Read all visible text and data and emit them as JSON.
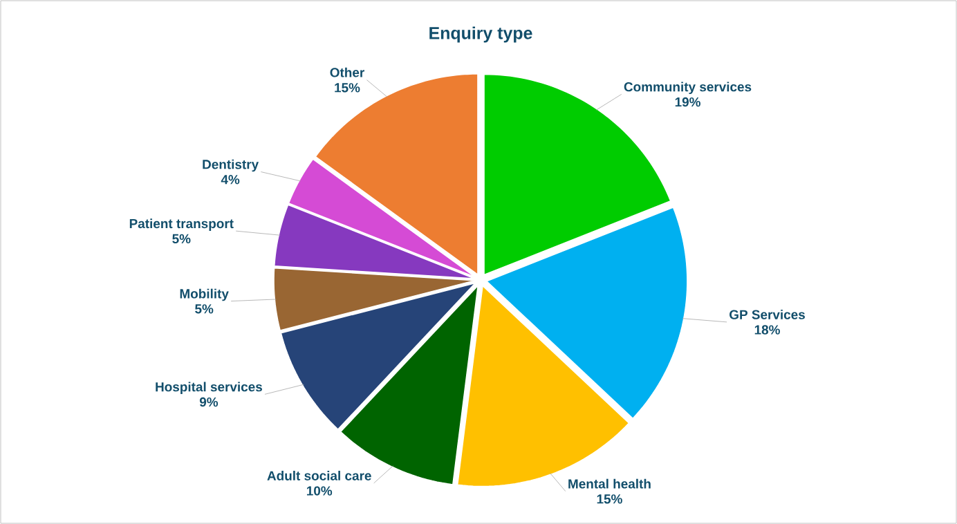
{
  "chart_data": {
    "type": "pie",
    "title": "Enquiry type",
    "categories": [
      "Community services",
      "GP Services",
      "Mental health",
      "Adult social care",
      "Hospital services",
      "Mobility",
      "Patient transport",
      "Dentistry",
      "Other"
    ],
    "values": [
      19,
      18,
      15,
      10,
      9,
      5,
      5,
      4,
      15
    ],
    "value_labels": [
      "19%",
      "18%",
      "15%",
      "10%",
      "9%",
      "5%",
      "5%",
      "4%",
      "15%"
    ],
    "colors": [
      "#00cc00",
      "#00b0f0",
      "#ffc000",
      "#006400",
      "#264478",
      "#996633",
      "#8639bf",
      "#d54bd5",
      "#ed7d31"
    ]
  }
}
